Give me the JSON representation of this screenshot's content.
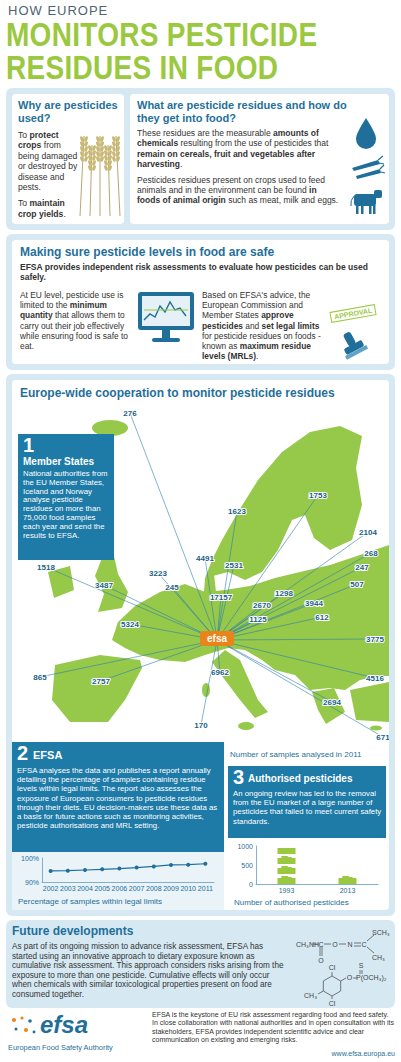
{
  "header": {
    "kicker": "HOW EUROPE",
    "title_lines": [
      "MONITORS PESTICIDE",
      "RESIDUES IN FOOD"
    ]
  },
  "why": {
    "title": "Why are pesticides used?",
    "paragraphs": [
      [
        "To ",
        {
          "text": "protect crops",
          "bold": true
        },
        " from being damaged or destroyed by disease and pests."
      ],
      [
        "To ",
        {
          "text": "maintain crop yields",
          "bold": true
        },
        "."
      ]
    ]
  },
  "residues": {
    "title": "What are pesticide residues and how do they get into food?",
    "paragraphs": [
      [
        "These residues are the measurable ",
        {
          "text": "amounts of chemicals",
          "bold": true
        },
        " resulting from the use of pesticides that ",
        {
          "text": "remain on cereals, fruit and vegetables after harvesting",
          "bold": true
        },
        "."
      ],
      [
        "Pesticides residues present on crops used to feed animals and in the environment can be found ",
        {
          "text": "in foods of animal origin",
          "bold": true
        },
        " such as meat, milk and eggs."
      ]
    ]
  },
  "safety": {
    "title": "Making sure pesticide levels in food are safe",
    "lead": "EFSA provides independent risk assessments to evaluate how pesticides can be used safely.",
    "left": [
      "At EU level, pesticide use is limited to the ",
      {
        "text": "minimum quantity",
        "bold": true
      },
      " that allows them to carry out their job effectively while ensuring food is safe to eat."
    ],
    "right": [
      "Based on EFSA's advice, the European Commission and Member States ",
      {
        "text": "approve pesticides",
        "bold": true
      },
      " and ",
      {
        "text": "set legal limits",
        "bold": true
      },
      " for pesticide residues on foods - known as ",
      {
        "text": "maximum residue levels (MRLs)",
        "bold": true
      },
      "."
    ],
    "stamp": "APPROVAL"
  },
  "cooperation": {
    "title": "Europe-wide cooperation to monitor pesticide residues",
    "member_states": {
      "number": "1",
      "title": "Member States",
      "text": "National authorities from the EU Member States, Iceland and Norway analyse pesticide residues on more than 75,000 food samples each year and send the results to EFSA."
    },
    "map": {
      "center_label": "efsa",
      "samples": [
        276,
        1623,
        1753,
        2104,
        268,
        247,
        507,
        1518,
        3487,
        4491,
        2531,
        3223,
        245,
        17157,
        1298,
        3944,
        612,
        5324,
        2670,
        1125,
        3775,
        865,
        2757,
        6962,
        4516,
        2694,
        170,
        671
      ],
      "caption": "Number of samples analysed in 2011"
    },
    "efsa": {
      "number": "2",
      "title": "EFSA",
      "text": "EFSA analyses the data and publishes a report annually detailing the percentage of samples containing residue levels within legal limits. The report also assesses the exposure of European consumers to pesticide residues through their diets. EU decision-makers use these data as a basis for future actions such as monitoring activities, pesticide authorisations and MRL setting."
    },
    "authorised": {
      "number": "3",
      "title": "Authorised pesticides",
      "text": "An ongoing review has led to the removal from the EU market of a large number of pesticides that failed to meet current safety standards."
    }
  },
  "chart_data": [
    {
      "type": "line",
      "title": "Percentage of samples within legal limits",
      "categories": [
        "2002",
        "2003",
        "2004",
        "2005",
        "2006",
        "2007",
        "2008",
        "2009",
        "2010",
        "2011"
      ],
      "values": [
        94.6,
        94.7,
        95.0,
        95.3,
        95.6,
        96.0,
        96.5,
        97.1,
        97.2,
        97.6
      ],
      "ylim": [
        90,
        100
      ],
      "yticks": [
        {
          "value": 90,
          "label": "90%"
        },
        {
          "value": 100,
          "label": "100%"
        }
      ],
      "color": "#1f6f9a",
      "marker": "circle",
      "grid": false
    },
    {
      "type": "bar",
      "title": "Number of authorised pesticides",
      "categories": [
        "1993",
        "2013"
      ],
      "values": [
        950,
        250
      ],
      "ylim": [
        0,
        1000
      ],
      "yticks": [
        0,
        500,
        1000
      ],
      "color": "#9ac83e",
      "marker": "jerrycan",
      "grid": false
    }
  ],
  "future": {
    "title": "Future developments",
    "text": "As part of its ongoing mission to advance risk assessment, EFSA has started using an innovative approach to dietary exposure known as cumulative risk assessment. This approach considers risks arising from the exposure to more than one pesticide. Cumulative effects will only occur when chemicals with similar toxicological properties present on food are consumed together.",
    "molecule_1": [
      "CH₃NH",
      "C",
      "O",
      "O",
      "N",
      "C",
      "SCH₃",
      "CH₃"
    ],
    "molecule_2": [
      "Cl",
      "O",
      "P(OCH₃)₂",
      "S",
      "CH₃",
      "Cl"
    ]
  },
  "footer": {
    "logo": "efsa",
    "organisation": "European Food Safety Authority",
    "text": "EFSA is the keystone of EU risk assessment regarding food and feed safety. In close collaboration with national authorities and in open consultation with its stakeholders, EFSA provides independent scientific advice and clear communication on existing and emerging risks.",
    "url": "www.efsa.europa.eu"
  }
}
